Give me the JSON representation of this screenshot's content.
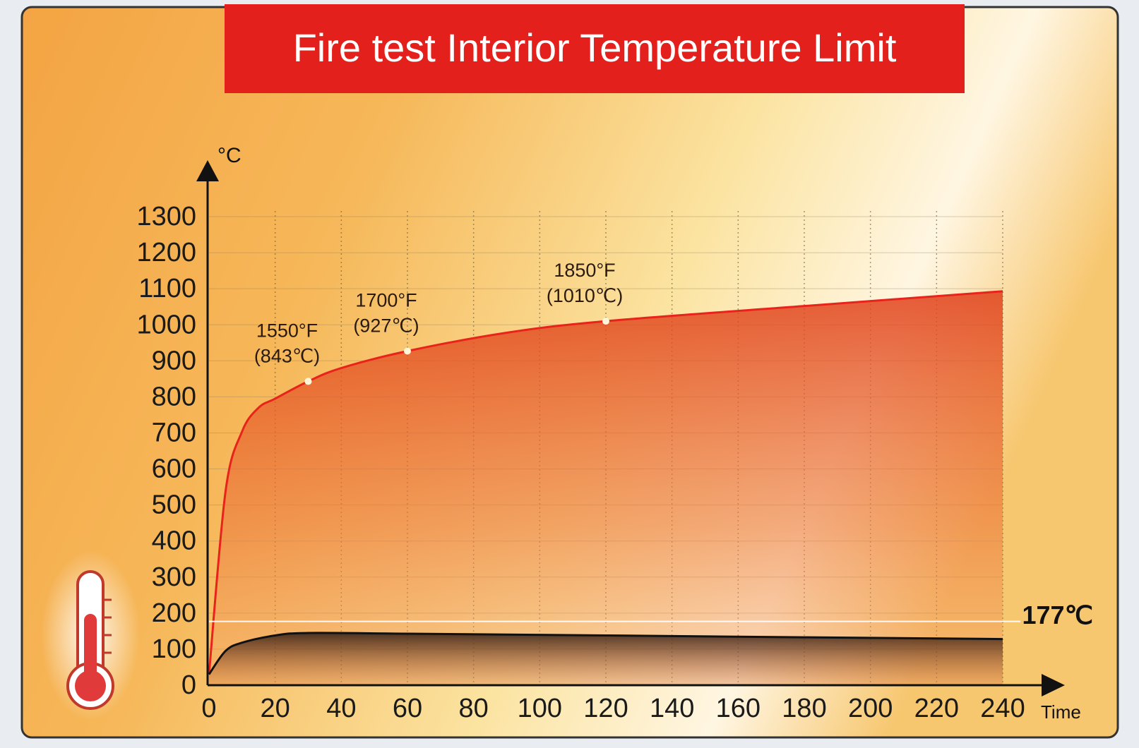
{
  "chart_data": {
    "type": "line",
    "title": "Fire test Interior Temperature Limit",
    "y_label": "°C",
    "x_label": "Time",
    "xlim": [
      0,
      240
    ],
    "xticks": [
      0,
      20,
      40,
      60,
      80,
      100,
      120,
      140,
      160,
      180,
      200,
      220,
      240
    ],
    "ylim": [
      0,
      1300
    ],
    "yticks": [
      0,
      100,
      200,
      300,
      400,
      500,
      600,
      700,
      800,
      900,
      1000,
      1100,
      1200,
      1300
    ],
    "grid": true,
    "series": [
      {
        "color": "#e8231c",
        "x": [
          0,
          5,
          10,
          15,
          20,
          30,
          40,
          60,
          90,
          120,
          180,
          240
        ],
        "values": [
          30,
          538,
          704,
          770,
          795,
          843,
          880,
          927,
          978,
          1010,
          1052,
          1093
        ]
      },
      {
        "color": "#111111",
        "x": [
          0,
          5,
          10,
          20,
          30,
          60,
          120,
          180,
          240
        ],
        "values": [
          30,
          95,
          118,
          138,
          145,
          143,
          138,
          133,
          128
        ]
      }
    ],
    "annotations": [
      {
        "x": 30,
        "y": 843,
        "label": [
          "1550°F",
          "(843℃)"
        ]
      },
      {
        "x": 60,
        "y": 927,
        "label": [
          "1700°F",
          "(927℃)"
        ]
      },
      {
        "x": 120,
        "y": 1010,
        "label": [
          "1850°F",
          "(1010℃)"
        ]
      }
    ],
    "limit": {
      "value": 177,
      "label": "177℃"
    }
  }
}
